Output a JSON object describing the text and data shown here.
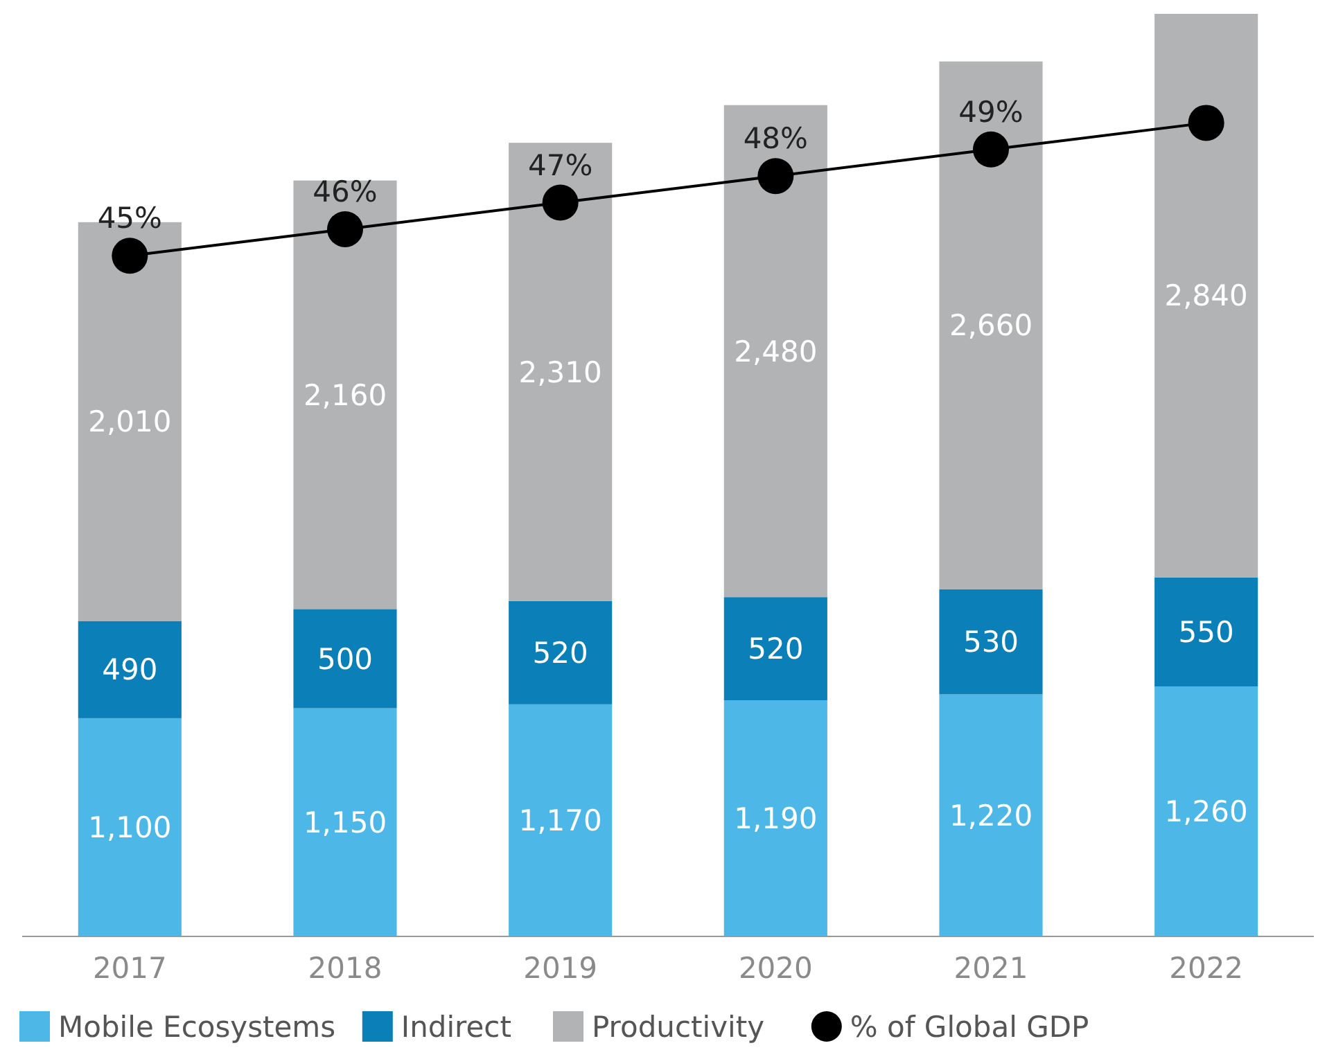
{
  "chart_data": {
    "type": "bar",
    "stacked": true,
    "categories": [
      "2017",
      "2018",
      "2019",
      "2020",
      "2021",
      "2022"
    ],
    "series": [
      {
        "name": "Mobile Ecosystems",
        "color": "#4db8e8",
        "values": [
          1100,
          1150,
          1170,
          1190,
          1220,
          1260
        ],
        "value_labels": [
          "1,100",
          "1,150",
          "1,170",
          "1,190",
          "1,220",
          "1,260"
        ]
      },
      {
        "name": "Indirect",
        "color": "#0a7fb8",
        "values": [
          490,
          500,
          520,
          520,
          530,
          550
        ],
        "value_labels": [
          "490",
          "500",
          "520",
          "520",
          "530",
          "550"
        ]
      },
      {
        "name": "Productivity",
        "color": "#b1b3b4",
        "values": [
          2010,
          2160,
          2310,
          2480,
          2660,
          2840
        ],
        "value_labels": [
          "2,010",
          "2,160",
          "2,310",
          "2,480",
          "2,660",
          "2,840"
        ]
      },
      {
        "name": "% of Global GDP",
        "type": "line",
        "axis": "y2",
        "color": "#000000",
        "marker": "circle",
        "values": [
          45,
          46,
          47,
          48,
          49,
          50
        ],
        "value_labels": [
          "45%",
          "46%",
          "47%",
          "48%",
          "49%",
          null
        ]
      }
    ],
    "ylim": [
      0,
      4650
    ],
    "y2lim": [
      19.4,
      54.1
    ],
    "tick_labels": "x",
    "legend": "bottom"
  }
}
